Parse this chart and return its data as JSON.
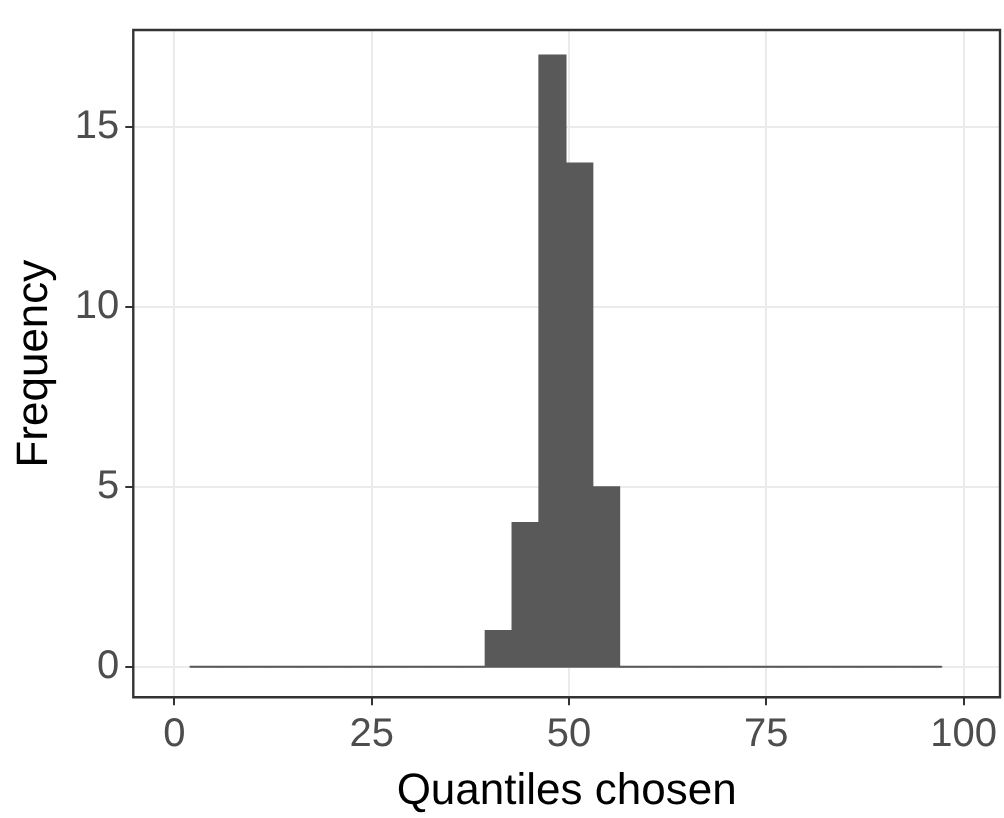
{
  "chart_data": {
    "type": "histogram",
    "xlabel": "Quantiles chosen",
    "ylabel": "Frequency",
    "bins": [
      2,
      5.4,
      8.8,
      12.2,
      15.6,
      19,
      22.4,
      25.8,
      29.2,
      32.6,
      36,
      39.4,
      42.8,
      46.2,
      49.6,
      53,
      56.4,
      59.8,
      63.2,
      66.6,
      70,
      73.4,
      76.8,
      80.2,
      83.6,
      87,
      90.4,
      93.8,
      97.2
    ],
    "values": [
      0,
      0,
      0,
      0,
      0,
      0,
      0,
      0,
      0,
      0,
      0,
      1,
      4,
      17,
      14,
      5,
      0,
      0,
      0,
      0,
      0,
      0,
      0,
      0,
      0,
      0,
      0,
      0
    ],
    "color": "#595959",
    "xlim": [
      -5.2,
      104.6
    ],
    "xticks": [
      0,
      25,
      50,
      75,
      100
    ],
    "ylim": [
      -0.85,
      17.7
    ],
    "yticks": [
      0,
      5,
      10,
      15
    ],
    "grid": true
  }
}
